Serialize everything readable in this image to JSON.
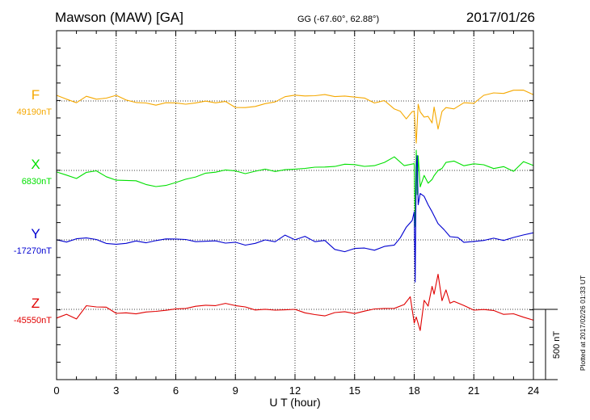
{
  "header": {
    "station": "Mawson (MAW)  [GA]",
    "coords": "GG (-67.60°,  62.88°)",
    "date": "2017/01/26"
  },
  "side_note": "Plotted at 2017/02/26 01:33 UT",
  "chart_data": {
    "type": "line",
    "title": "Mawson (MAW)  [GA]",
    "xlabel": "U T (hour)",
    "xlim": [
      0,
      24
    ],
    "xticks": [
      "0",
      "3",
      "6",
      "9",
      "12",
      "15",
      "18",
      "21",
      "24"
    ],
    "grid": true,
    "scale_bar": {
      "label": "500 nT",
      "value_nT": 500
    },
    "series": [
      {
        "name": "F",
        "baseline": "49190nT",
        "baseline_nT": 49190,
        "color": "#f5a800",
        "x": [
          0,
          0.5,
          1,
          1.5,
          2,
          2.5,
          3,
          3.5,
          4,
          4.5,
          5,
          5.5,
          6,
          6.5,
          7,
          7.5,
          8,
          8.5,
          9,
          9.5,
          10,
          10.5,
          11,
          11.5,
          12,
          12.5,
          13,
          13.5,
          14,
          14.5,
          15,
          15.5,
          16,
          16.5,
          17,
          17.3,
          17.6,
          17.9,
          18,
          18.1,
          18.2,
          18.3,
          18.5,
          18.7,
          18.9,
          19,
          19.2,
          19.4,
          19.6,
          20,
          20.5,
          21,
          21.5,
          22,
          22.5,
          23,
          23.5,
          24
        ],
        "y": [
          40,
          20,
          0,
          50,
          30,
          35,
          50,
          10,
          -15,
          -25,
          -45,
          -30,
          -30,
          -35,
          -20,
          0,
          -5,
          10,
          -30,
          -30,
          -25,
          -10,
          -5,
          25,
          30,
          20,
          20,
          30,
          20,
          30,
          30,
          30,
          0,
          20,
          -40,
          -60,
          -120,
          -75,
          -80,
          -300,
          -40,
          -95,
          -130,
          -120,
          -160,
          -40,
          -200,
          -60,
          -30,
          -40,
          0,
          -10,
          40,
          50,
          40,
          60,
          60,
          30
        ]
      },
      {
        "name": "X",
        "baseline": "6830nT",
        "baseline_nT": 6830,
        "color": "#00e000",
        "x": [
          0,
          0.5,
          1,
          1.5,
          2,
          2.5,
          3,
          3.5,
          4,
          4.5,
          5,
          5.5,
          6,
          6.5,
          7,
          7.5,
          8,
          8.5,
          9,
          9.5,
          10,
          10.5,
          11,
          11.5,
          12,
          12.5,
          13,
          13.5,
          14,
          14.5,
          15,
          15.5,
          16,
          16.5,
          17,
          17.5,
          18,
          18.05,
          18.1,
          18.15,
          18.2,
          18.3,
          18.5,
          18.7,
          18.9,
          19,
          19.2,
          19.4,
          19.6,
          20,
          20.5,
          21,
          21.5,
          22,
          22.5,
          23,
          23.5,
          24
        ],
        "y": [
          -10,
          -40,
          -70,
          -30,
          -20,
          -60,
          -80,
          -75,
          -70,
          -90,
          -100,
          -90,
          -70,
          -50,
          -40,
          -20,
          -20,
          -10,
          -20,
          -40,
          -20,
          0,
          -10,
          10,
          20,
          30,
          40,
          40,
          40,
          50,
          40,
          20,
          20,
          40,
          80,
          20,
          40,
          -400,
          150,
          -160,
          120,
          -100,
          -20,
          -80,
          -60,
          -40,
          -10,
          0,
          40,
          50,
          20,
          40,
          40,
          20,
          40,
          10,
          80,
          50
        ]
      },
      {
        "name": "Y",
        "baseline": "-17270nT",
        "baseline_nT": -17270,
        "color": "#0000d0",
        "x": [
          0,
          0.5,
          1,
          1.5,
          2,
          2.5,
          3,
          3.5,
          4,
          4.5,
          5,
          5.5,
          6,
          6.5,
          7,
          7.5,
          8,
          8.5,
          9,
          9.5,
          10,
          10.5,
          11,
          11.5,
          12,
          12.5,
          13,
          13.5,
          14,
          14.5,
          15,
          15.5,
          16,
          16.5,
          17,
          17.3,
          17.6,
          17.9,
          18,
          18.05,
          18.1,
          18.15,
          18.2,
          18.3,
          18.5,
          18.7,
          18.9,
          19.2,
          19.5,
          19.8,
          20.2,
          20.5,
          21,
          21.5,
          22,
          22.5,
          23,
          23.5,
          24
        ],
        "y": [
          0,
          -10,
          20,
          30,
          20,
          -10,
          -20,
          -20,
          -10,
          -30,
          -20,
          -10,
          -10,
          -10,
          -20,
          -10,
          0,
          -10,
          0,
          -20,
          -10,
          10,
          -10,
          30,
          -10,
          10,
          -30,
          -20,
          -80,
          -90,
          -60,
          -50,
          -60,
          -30,
          -20,
          30,
          100,
          140,
          200,
          -300,
          520,
          600,
          250,
          330,
          310,
          250,
          200,
          130,
          90,
          40,
          30,
          -10,
          -10,
          -10,
          0,
          -20,
          0,
          20,
          40
        ]
      },
      {
        "name": "Z",
        "baseline": "-45550nT",
        "baseline_nT": -45550,
        "color": "#e00000",
        "x": [
          0,
          0.5,
          1,
          1.5,
          2,
          2.5,
          3,
          3.5,
          4,
          4.5,
          5,
          5.5,
          6,
          6.5,
          7,
          7.5,
          8,
          8.5,
          9,
          9.5,
          10,
          10.5,
          11,
          11.5,
          12,
          12.5,
          13,
          13.5,
          14,
          14.5,
          15,
          15.5,
          16,
          16.5,
          17,
          17.5,
          17.8,
          18,
          18.1,
          18.3,
          18.5,
          18.7,
          18.9,
          19,
          19.2,
          19.4,
          19.6,
          19.8,
          20,
          20.5,
          21,
          21.5,
          22,
          22.5,
          23,
          23.5,
          24
        ],
        "y": [
          -60,
          -40,
          -80,
          10,
          0,
          0,
          -40,
          -30,
          -30,
          -10,
          0,
          10,
          20,
          20,
          30,
          30,
          20,
          30,
          10,
          0,
          -20,
          -10,
          -10,
          0,
          10,
          -10,
          -20,
          -30,
          -10,
          -10,
          -30,
          -20,
          -10,
          -10,
          -10,
          20,
          80,
          -100,
          -50,
          -140,
          80,
          40,
          180,
          120,
          250,
          60,
          130,
          30,
          40,
          10,
          -20,
          -10,
          -10,
          -30,
          -20,
          -40,
          -60
        ]
      }
    ]
  }
}
